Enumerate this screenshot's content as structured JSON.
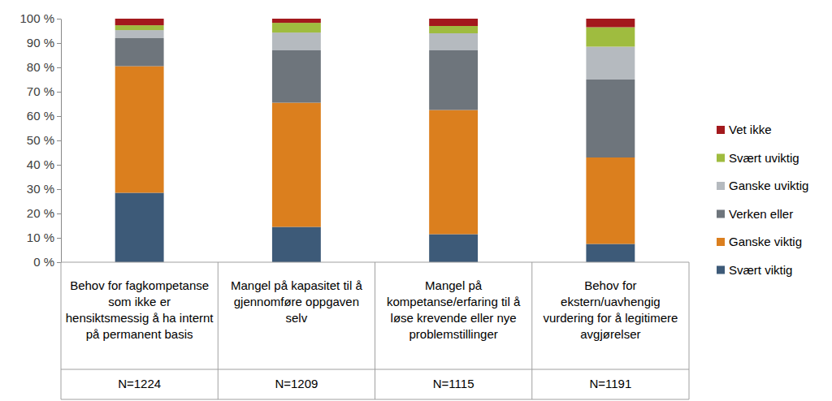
{
  "chart_data": {
    "type": "bar",
    "stacked": true,
    "legend": "right",
    "grid": false,
    "categories": [
      "Behov for fagkompetanse som ikke er hensiktsmessig å ha internt på permanent basis",
      "Mangel på kapasitet til å gjennomføre oppgaven selv",
      "Mangel på kompetanse/erfaring til å løse krevende eller nye problemstillinger",
      "Behov for ekstern/uavhengig vurdering for å legitimere avgjørelser"
    ],
    "annotations": [
      "N=1224",
      "N=1209",
      "N=1115",
      "N=1191"
    ],
    "series": [
      {
        "name": "Svært viktig",
        "color": "#3d5a78",
        "values": [
          28.5,
          14.5,
          11.5,
          7.5
        ]
      },
      {
        "name": "Ganske viktig",
        "color": "#db7f1e",
        "values": [
          52,
          51,
          51,
          35.5
        ]
      },
      {
        "name": "Verken eller",
        "color": "#6e757c",
        "values": [
          11.5,
          21.5,
          24.5,
          32
        ]
      },
      {
        "name": "Ganske uviktig",
        "color": "#b5babf",
        "values": [
          3.3,
          7.3,
          7,
          13.5
        ]
      },
      {
        "name": "Svært uviktig",
        "color": "#9fbc3f",
        "values": [
          2,
          4,
          3,
          8
        ]
      },
      {
        "name": "Vet ikke",
        "color": "#a3191d",
        "values": [
          2.7,
          1.7,
          3,
          3.5
        ]
      }
    ],
    "ylim": [
      0,
      100
    ],
    "yticks": [
      {
        "value": 0,
        "label": "0 %"
      },
      {
        "value": 10,
        "label": "10 %"
      },
      {
        "value": 20,
        "label": "20 %"
      },
      {
        "value": 30,
        "label": "30 %"
      },
      {
        "value": 40,
        "label": "40 %"
      },
      {
        "value": 50,
        "label": "50 %"
      },
      {
        "value": 60,
        "label": "60 %"
      },
      {
        "value": 70,
        "label": "70 %"
      },
      {
        "value": 80,
        "label": "80 %"
      },
      {
        "value": 90,
        "label": "90 %"
      },
      {
        "value": 100,
        "label": "100 %"
      }
    ]
  }
}
